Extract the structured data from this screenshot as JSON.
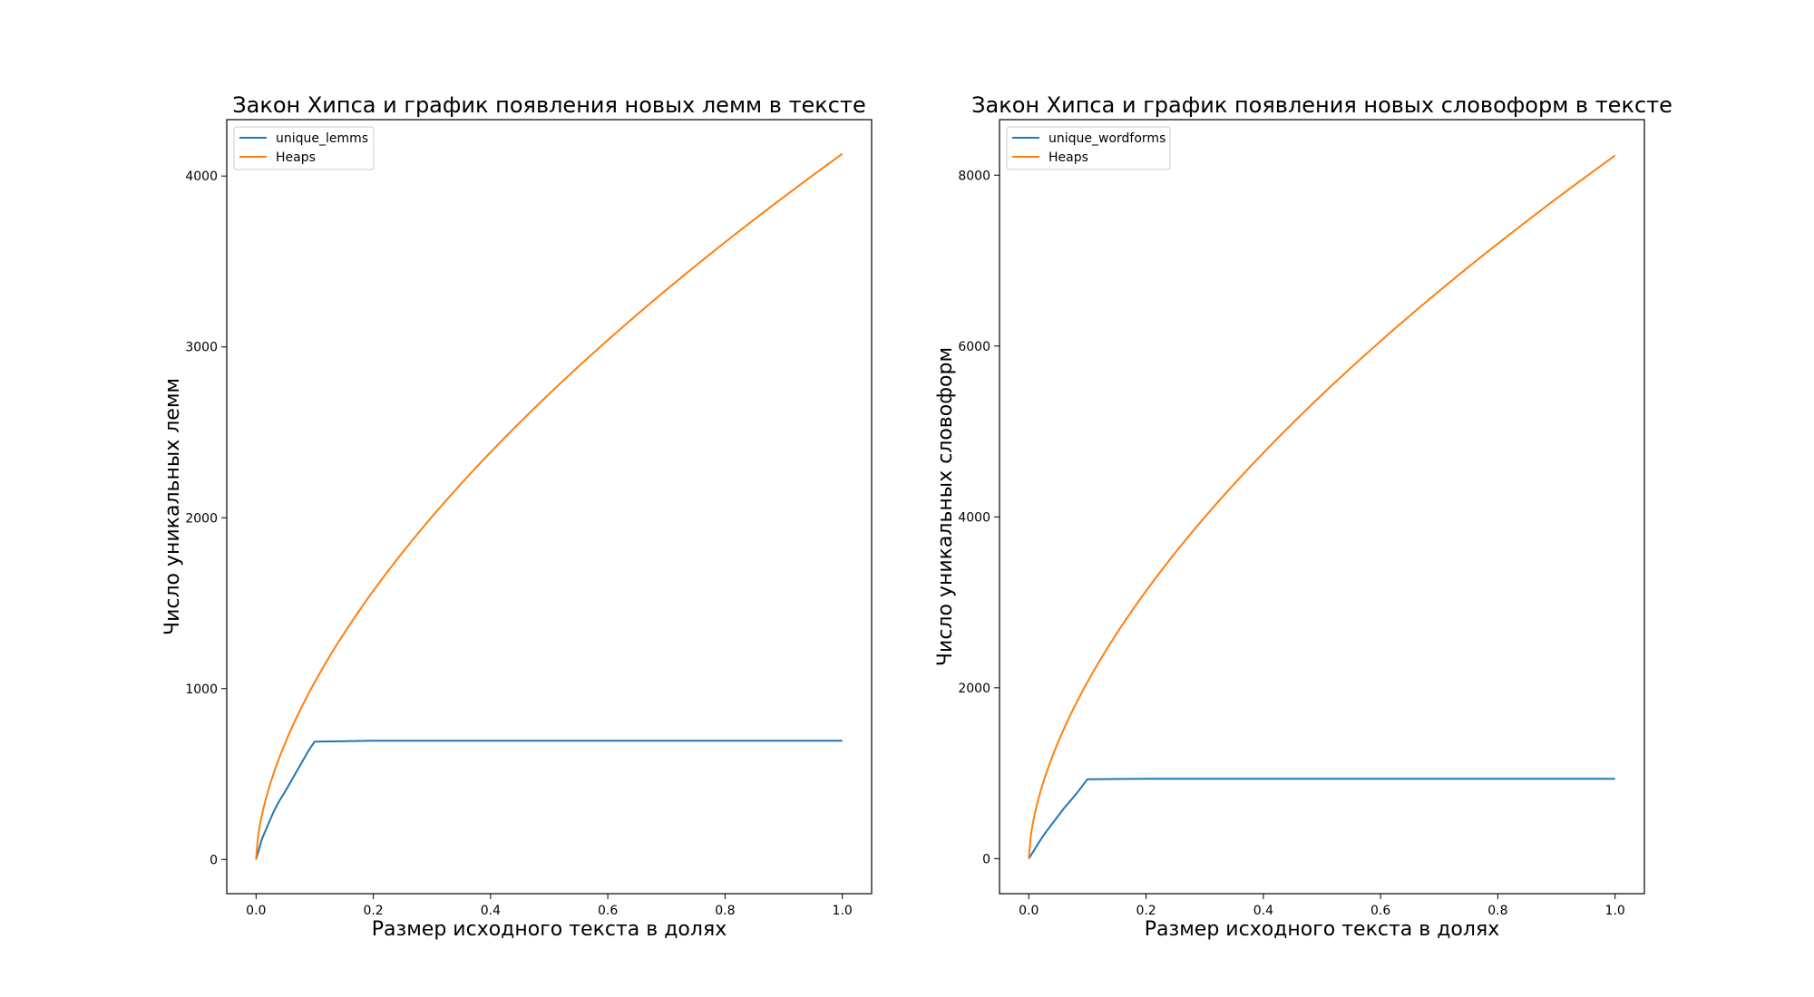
{
  "chart_data": [
    {
      "type": "line",
      "title": "Закон Хипса и график появления новых лемм в тексте",
      "xlabel": "Размер исходного текста в долях",
      "ylabel": "Число уникальных лемм",
      "xlim": [
        -0.05,
        1.05
      ],
      "ylim": [
        -200,
        4330
      ],
      "xticks": [
        0.0,
        0.2,
        0.4,
        0.6,
        0.8,
        1.0
      ],
      "xtick_labels": [
        "0.0",
        "0.2",
        "0.4",
        "0.6",
        "0.8",
        "1.0"
      ],
      "yticks": [
        0,
        1000,
        2000,
        3000,
        4000
      ],
      "ytick_labels": [
        "0",
        "1000",
        "2000",
        "3000",
        "4000"
      ],
      "grid": false,
      "legend_position": "top-left",
      "series": [
        {
          "name": "unique_lemms",
          "color": "#1f77b4",
          "x": [
            0,
            0.01,
            0.02,
            0.03,
            0.04,
            0.05,
            0.06,
            0.07,
            0.08,
            0.09,
            0.1,
            0.2,
            0.4,
            0.6,
            0.8,
            1.0
          ],
          "y": [
            0,
            120,
            200,
            280,
            345,
            400,
            460,
            520,
            580,
            640,
            690,
            695,
            695,
            695,
            695,
            695
          ]
        },
        {
          "name": "Heaps",
          "color": "#ff7f0e",
          "type": "power",
          "k": 4130,
          "beta": 0.6,
          "x": [
            0,
            0.01,
            0.02,
            0.05,
            0.1,
            0.2,
            0.3,
            0.4,
            0.5,
            0.6,
            0.7,
            0.8,
            0.9,
            1.0
          ],
          "y": [
            0,
            260,
            395,
            685,
            1037,
            1570,
            2004,
            2380,
            2725,
            3040,
            3340,
            3620,
            3880,
            4130
          ]
        }
      ]
    },
    {
      "type": "line",
      "title": "Закон Хипса и график появления новых словоформ в тексте",
      "xlabel": "Размер исходного текста в долях",
      "ylabel": "Число уникальных словоформ",
      "xlim": [
        -0.05,
        1.05
      ],
      "ylim": [
        -410,
        8650
      ],
      "xticks": [
        0.0,
        0.2,
        0.4,
        0.6,
        0.8,
        1.0
      ],
      "xtick_labels": [
        "0.0",
        "0.2",
        "0.4",
        "0.6",
        "0.8",
        "1.0"
      ],
      "yticks": [
        0,
        2000,
        4000,
        6000,
        8000
      ],
      "ytick_labels": [
        "0",
        "2000",
        "4000",
        "6000",
        "8000"
      ],
      "grid": false,
      "legend_position": "top-left",
      "series": [
        {
          "name": "unique_wordforms",
          "color": "#1f77b4",
          "x": [
            0,
            0.01,
            0.02,
            0.03,
            0.04,
            0.05,
            0.06,
            0.07,
            0.08,
            0.09,
            0.1,
            0.2,
            0.4,
            0.6,
            0.8,
            1.0
          ],
          "y": [
            0,
            110,
            220,
            320,
            410,
            500,
            590,
            670,
            750,
            840,
            930,
            935,
            935,
            935,
            935,
            935
          ]
        },
        {
          "name": "Heaps",
          "color": "#ff7f0e",
          "type": "power",
          "k": 8230,
          "beta": 0.6,
          "x": [
            0,
            0.01,
            0.02,
            0.05,
            0.1,
            0.2,
            0.3,
            0.4,
            0.5,
            0.6,
            0.7,
            0.8,
            0.9,
            1.0
          ],
          "y": [
            0,
            520,
            790,
            1365,
            2067,
            3130,
            3990,
            4740,
            5430,
            6060,
            6650,
            7210,
            7740,
            8230
          ]
        }
      ]
    }
  ]
}
